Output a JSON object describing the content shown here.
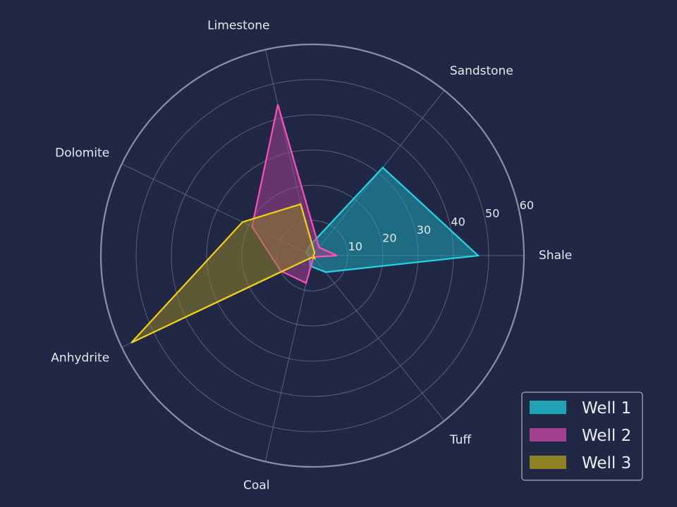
{
  "chart_data": {
    "type": "radar",
    "categories": [
      "Shale",
      "Sandstone",
      "Limestone",
      "Dolomite",
      "Anhydrite",
      "Coal",
      "Tuff"
    ],
    "rlim": [
      0,
      60
    ],
    "rticks": [
      "10",
      "20",
      "30",
      "40",
      "50",
      "60"
    ],
    "grid": true,
    "legend_position": "bottom-right",
    "series": [
      {
        "name": "Well 1",
        "values": [
          47,
          32,
          3,
          2,
          1,
          3,
          6
        ],
        "color": "#22d6e8",
        "fill": "#1fa3b5"
      },
      {
        "name": "Well 2",
        "values": [
          7,
          3,
          44,
          19,
          10,
          8,
          0.5
        ],
        "color": "#ff4fb8",
        "fill": "#a0408e"
      },
      {
        "name": "Well 3",
        "values": [
          0.3,
          1,
          15,
          22,
          57,
          0.5,
          1
        ],
        "color": "#f2d114",
        "fill": "#8f8227"
      }
    ]
  }
}
